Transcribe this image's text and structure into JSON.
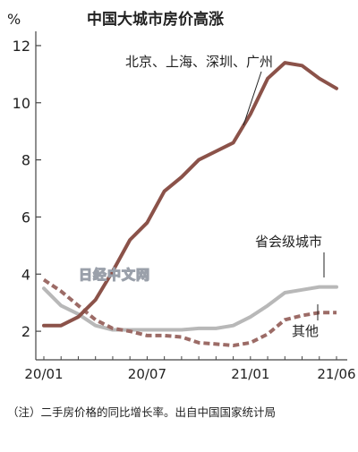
{
  "chart_data": {
    "type": "line",
    "title": "中国大城市房价高涨",
    "y_unit": "%",
    "ylim": [
      1,
      12.5
    ],
    "y_ticks": [
      2,
      4,
      6,
      8,
      10,
      12
    ],
    "x_tick_labels": [
      {
        "i": 0,
        "label": "20/01"
      },
      {
        "i": 6,
        "label": "20/07"
      },
      {
        "i": 12,
        "label": "21/01"
      },
      {
        "i": 17,
        "label": "21/06"
      }
    ],
    "x": [
      "20/01",
      "20/02",
      "20/03",
      "20/04",
      "20/05",
      "20/06",
      "20/07",
      "20/08",
      "20/09",
      "20/10",
      "20/11",
      "20/12",
      "21/01",
      "21/02",
      "21/03",
      "21/04",
      "21/05",
      "21/06"
    ],
    "grid": false,
    "series": [
      {
        "name": "北京、上海、深圳、广州",
        "color": "#8b5249",
        "style": "solid",
        "values": [
          2.2,
          2.2,
          2.5,
          3.1,
          4.1,
          5.2,
          5.8,
          6.9,
          7.4,
          8.0,
          8.3,
          8.6,
          9.6,
          10.85,
          11.4,
          11.3,
          10.85,
          10.5
        ]
      },
      {
        "name": "省会级城市",
        "color": "#b8b8b8",
        "style": "solid",
        "values": [
          3.5,
          2.9,
          2.6,
          2.2,
          2.05,
          2.05,
          2.05,
          2.05,
          2.05,
          2.1,
          2.1,
          2.2,
          2.5,
          2.9,
          3.35,
          3.45,
          3.55,
          3.55
        ]
      },
      {
        "name": "其他",
        "color": "#9c6b66",
        "style": "dashed",
        "values": [
          3.8,
          3.4,
          2.9,
          2.4,
          2.1,
          2.0,
          1.85,
          1.85,
          1.8,
          1.6,
          1.55,
          1.5,
          1.6,
          1.9,
          2.4,
          2.55,
          2.65,
          2.65
        ]
      }
    ]
  },
  "watermark_text": "日经中文网",
  "footnote": "（注）二手房价格的同比增长率。出自中国国家统计局"
}
